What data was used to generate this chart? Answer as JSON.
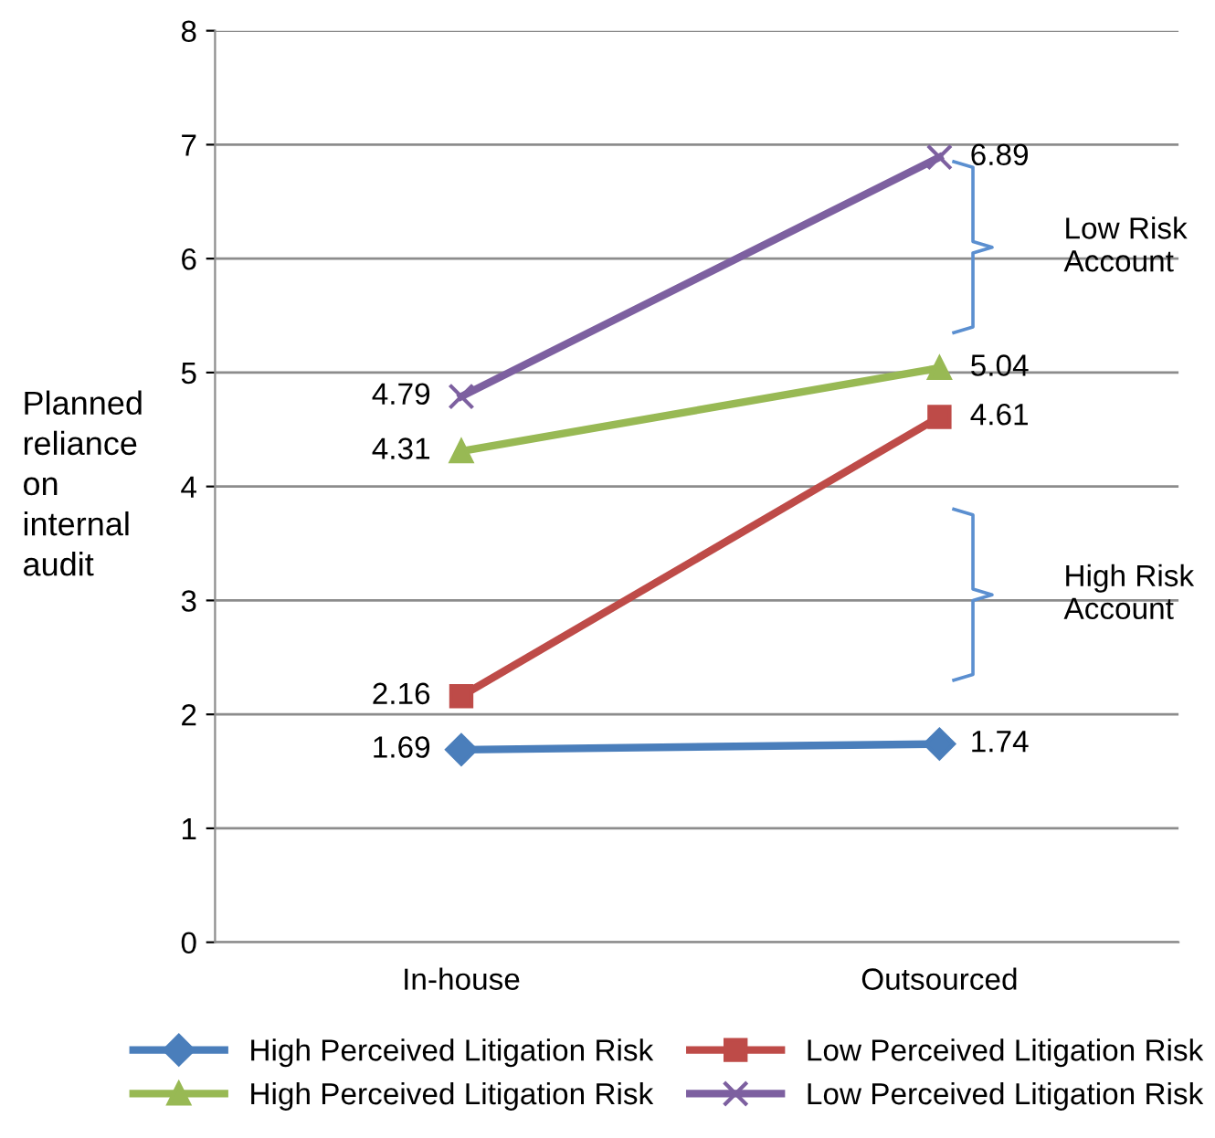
{
  "chart_data": {
    "type": "line",
    "ylabel": "Planned\nreliance\non\ninternal\naudit",
    "categories": [
      "In-house",
      "Outsourced"
    ],
    "series": [
      {
        "name": "High Perceived Litigation Risk",
        "color": "#4a7ebb",
        "marker": "diamond",
        "values": [
          1.69,
          1.74
        ]
      },
      {
        "name": "Low Perceived Litigation Risk",
        "color": "#be4b48",
        "marker": "square",
        "values": [
          2.16,
          4.61
        ]
      },
      {
        "name": "High Perceived Litigation Risk",
        "color": "#98b954",
        "marker": "triangle",
        "values": [
          4.31,
          5.04
        ]
      },
      {
        "name": "Low Perceived Litigation Risk",
        "color": "#7d60a0",
        "marker": "cross",
        "values": [
          4.79,
          6.89
        ]
      }
    ],
    "ylim": [
      0,
      8
    ],
    "yticks": [
      0,
      1,
      2,
      3,
      4,
      5,
      6,
      7,
      8
    ],
    "grid": "y",
    "legend": "bottom",
    "data_labels": true,
    "line_style": "solid",
    "annotations": [
      "Low Risk\nAccount",
      "High Risk\nAccount"
    ]
  }
}
